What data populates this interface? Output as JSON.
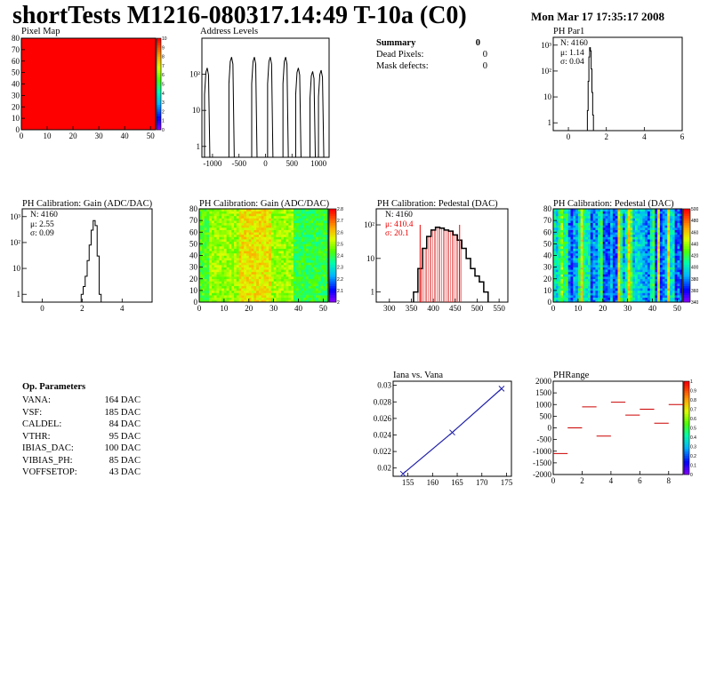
{
  "header": {
    "title": "shortTests M1216-080317.14:49 T-10a (C0)",
    "datetime": "Mon Mar 17 17:35:17 2008"
  },
  "panels": {
    "pixel_map": {
      "title": "Pixel Map",
      "yticks": [
        "0",
        "10",
        "20",
        "30",
        "40",
        "50",
        "60",
        "70",
        "80"
      ],
      "xticks": [
        "0",
        "10",
        "20",
        "30",
        "40",
        "50"
      ],
      "zticks": [
        "0",
        "1",
        "2",
        "3",
        "4",
        "5",
        "6",
        "7",
        "8",
        "9",
        "10"
      ]
    },
    "address_levels": {
      "title": "Address Levels",
      "yticks": [
        "1",
        "10",
        "10²"
      ],
      "xticks": [
        "-1000",
        "-500",
        "0",
        "500",
        "1000"
      ]
    },
    "summary": {
      "title": "Summary",
      "title_value": "0",
      "rows": [
        {
          "label": "Dead Pixels:",
          "value": "0"
        },
        {
          "label": "Mask defects:",
          "value": "0"
        }
      ]
    },
    "ph_par1": {
      "title": "PH Par1",
      "stats": [
        "N: 4160",
        "μ: 1.14",
        "σ: 0.04"
      ],
      "yticks": [
        "1",
        "10",
        "10²",
        "10³"
      ],
      "xticks": [
        "0",
        "2",
        "4",
        "6"
      ]
    },
    "gain_hist": {
      "title": "PH Calibration: Gain (ADC/DAC)",
      "stats": [
        "N: 4160",
        "μ: 2.55",
        "σ: 0.09"
      ],
      "yticks": [
        "1",
        "10",
        "10²",
        "10³"
      ],
      "xticks": [
        "0",
        "2",
        "4"
      ]
    },
    "gain_map": {
      "title": "PH Calibration: Gain (ADC/DAC)",
      "yticks": [
        "0",
        "10",
        "20",
        "30",
        "40",
        "50",
        "60",
        "70",
        "80"
      ],
      "xticks": [
        "0",
        "10",
        "20",
        "30",
        "40",
        "50"
      ],
      "zticks": [
        "2",
        "2.1",
        "2.2",
        "2.3",
        "2.4",
        "2.5",
        "2.6",
        "2.7",
        "2.8"
      ]
    },
    "ped_hist": {
      "title": "PH Calibration: Pedestal (DAC)",
      "stats": [
        "N: 4160",
        "μ: 410.4",
        "σ: 20.1"
      ],
      "yticks": [
        "1",
        "10",
        "10²"
      ],
      "xticks": [
        "300",
        "350",
        "400",
        "450",
        "500",
        "550"
      ]
    },
    "ped_map": {
      "title": "PH Calibration: Pedestal (DAC)",
      "yticks": [
        "0",
        "10",
        "20",
        "30",
        "40",
        "50",
        "60",
        "70",
        "80"
      ],
      "xticks": [
        "0",
        "10",
        "20",
        "30",
        "40",
        "50"
      ],
      "zticks": [
        "340",
        "360",
        "380",
        "400",
        "420",
        "440",
        "460",
        "480",
        "500"
      ]
    },
    "op_params": {
      "title": "Op. Parameters",
      "rows": [
        {
          "label": "VANA:",
          "value": "164 DAC"
        },
        {
          "label": "VSF:",
          "value": "185 DAC"
        },
        {
          "label": "CALDEL:",
          "value": "84 DAC"
        },
        {
          "label": "VTHR:",
          "value": "95 DAC"
        },
        {
          "label": "IBIAS_DAC:",
          "value": "100 DAC"
        },
        {
          "label": "VIBIAS_PH:",
          "value": "85 DAC"
        },
        {
          "label": "VOFFSETOP:",
          "value": "43 DAC"
        }
      ]
    },
    "iana": {
      "title": "Iana vs. Vana",
      "yticks": [
        "0.02",
        "0.022",
        "0.024",
        "0.026",
        "0.028",
        "0.03"
      ],
      "xticks": [
        "155",
        "160",
        "165",
        "170",
        "175"
      ]
    },
    "phrange": {
      "title": "PHRange",
      "yticks": [
        "-2000",
        "-1500",
        "-1000",
        "-500",
        "0",
        "500",
        "1000",
        "1500",
        "2000"
      ],
      "xticks": [
        "0",
        "2",
        "4",
        "6",
        "8"
      ],
      "zticks": [
        "0",
        "0.1",
        "0.2",
        "0.3",
        "0.4",
        "0.5",
        "0.6",
        "0.7",
        "0.8",
        "0.9",
        "1"
      ]
    }
  },
  "chart_data": [
    {
      "type": "heatmap",
      "title": "Pixel Map",
      "xlim": [
        0,
        52
      ],
      "ylim": [
        0,
        80
      ],
      "zlim": [
        0,
        10
      ],
      "uniform_value": 10
    },
    {
      "type": "bar",
      "title": "Address Levels",
      "xlim": [
        -1200,
        1200
      ],
      "log_y": true,
      "peak_x": [
        -1100,
        -640,
        -210,
        90,
        380,
        620,
        890,
        1050
      ],
      "peak_y": [
        150,
        300,
        300,
        300,
        300,
        150,
        120,
        130
      ]
    },
    {
      "type": "bar",
      "title": "PH Par1",
      "xlim": [
        -0.8,
        6
      ],
      "log_y": true,
      "x": [
        1.02,
        1.06,
        1.1,
        1.14,
        1.18,
        1.22,
        1.26,
        1.3
      ],
      "y": [
        3,
        40,
        350,
        800,
        600,
        120,
        15,
        2
      ]
    },
    {
      "type": "bar",
      "title": "PH Calibration: Gain (ADC/DAC)",
      "xlim": [
        -1,
        5.5
      ],
      "log_y": true,
      "x": [
        2.0,
        2.1,
        2.2,
        2.3,
        2.4,
        2.5,
        2.6,
        2.7,
        2.8,
        2.9
      ],
      "y": [
        1,
        2,
        5,
        20,
        80,
        300,
        700,
        450,
        30,
        1
      ]
    },
    {
      "type": "heatmap",
      "title": "PH Calibration: Gain (ADC/DAC)",
      "xlim": [
        0,
        52
      ],
      "ylim": [
        0,
        80
      ],
      "zlim": [
        2,
        2.9
      ]
    },
    {
      "type": "bar",
      "title": "PH Calibration: Pedestal (DAC)",
      "xlim": [
        270,
        570
      ],
      "log_y": true,
      "x": [
        360,
        370,
        380,
        390,
        400,
        410,
        420,
        430,
        440,
        450,
        460,
        470,
        480,
        490,
        500,
        510,
        520
      ],
      "y": [
        1,
        5,
        20,
        45,
        70,
        85,
        80,
        70,
        65,
        50,
        35,
        20,
        10,
        5,
        3,
        2,
        1
      ],
      "fit_range": [
        370,
        460
      ]
    },
    {
      "type": "heatmap",
      "title": "PH Calibration: Pedestal (DAC)",
      "xlim": [
        0,
        52
      ],
      "ylim": [
        0,
        80
      ],
      "zlim": [
        340,
        500
      ]
    },
    {
      "type": "line",
      "title": "Iana vs. Vana",
      "x": [
        154,
        164,
        174
      ],
      "y": [
        0.0193,
        0.0243,
        0.0296
      ],
      "xlim": [
        152,
        176
      ],
      "ylim": [
        0.019,
        0.0305
      ]
    },
    {
      "type": "scatter",
      "title": "PHRange",
      "xlim": [
        0,
        9
      ],
      "ylim": [
        -2000,
        2000
      ],
      "x": [
        0.5,
        1.5,
        2.5,
        3.5,
        4.5,
        5.5,
        6.5,
        7.5,
        8.5
      ],
      "y": [
        -1100,
        0,
        900,
        -350,
        1100,
        550,
        800,
        200,
        1000
      ]
    }
  ]
}
